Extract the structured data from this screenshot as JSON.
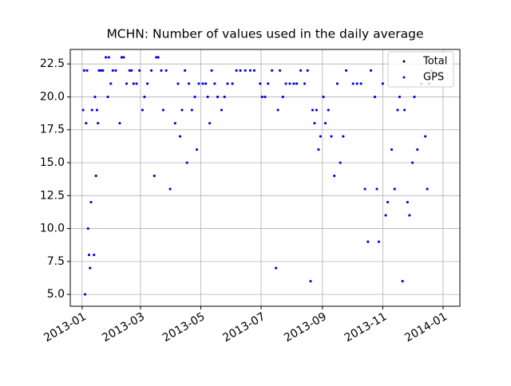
{
  "chart_data": {
    "type": "scatter",
    "title": "MCHN: Number of values used in the daily average",
    "x": [
      "2013-01-02",
      "2013-01-03",
      "2013-01-04",
      "2013-01-05",
      "2013-01-06",
      "2013-01-07",
      "2013-01-08",
      "2013-01-09",
      "2013-01-10",
      "2013-01-11",
      "2013-01-13",
      "2013-01-14",
      "2013-01-15",
      "2013-01-16",
      "2013-01-17",
      "2013-01-18",
      "2013-01-20",
      "2013-01-22",
      "2013-01-25",
      "2013-01-27",
      "2013-01-28",
      "2013-01-30",
      "2013-02-01",
      "2013-02-04",
      "2013-02-08",
      "2013-02-10",
      "2013-02-12",
      "2013-02-15",
      "2013-02-18",
      "2013-02-20",
      "2013-02-22",
      "2013-02-25",
      "2013-02-28",
      "2013-03-03",
      "2013-03-05",
      "2013-03-08",
      "2013-03-12",
      "2013-03-15",
      "2013-03-17",
      "2013-03-19",
      "2013-03-22",
      "2013-03-24",
      "2013-03-27",
      "2013-03-31",
      "2013-04-05",
      "2013-04-08",
      "2013-04-10",
      "2013-04-12",
      "2013-04-15",
      "2013-04-17",
      "2013-04-19",
      "2013-04-22",
      "2013-04-25",
      "2013-04-27",
      "2013-04-29",
      "2013-05-03",
      "2013-05-06",
      "2013-05-08",
      "2013-05-10",
      "2013-05-12",
      "2013-05-15",
      "2013-05-18",
      "2013-05-22",
      "2013-05-25",
      "2013-05-28",
      "2013-06-02",
      "2013-06-06",
      "2013-06-10",
      "2013-06-15",
      "2013-06-20",
      "2013-06-24",
      "2013-06-30",
      "2013-07-02",
      "2013-07-05",
      "2013-07-08",
      "2013-07-12",
      "2013-07-16",
      "2013-07-18",
      "2013-07-20",
      "2013-07-23",
      "2013-07-26",
      "2013-07-30",
      "2013-08-03",
      "2013-08-06",
      "2013-08-10",
      "2013-08-14",
      "2013-08-17",
      "2013-08-20",
      "2013-08-22",
      "2013-08-24",
      "2013-08-26",
      "2013-08-28",
      "2013-08-30",
      "2013-09-02",
      "2013-09-04",
      "2013-09-07",
      "2013-09-10",
      "2013-09-13",
      "2013-09-16",
      "2013-09-19",
      "2013-09-22",
      "2013-09-25",
      "2013-10-02",
      "2013-10-06",
      "2013-10-10",
      "2013-10-14",
      "2013-10-17",
      "2013-10-20",
      "2013-10-24",
      "2013-10-26",
      "2013-10-28",
      "2013-11-01",
      "2013-11-04",
      "2013-11-06",
      "2013-11-10",
      "2013-11-13",
      "2013-11-16",
      "2013-11-18",
      "2013-11-21",
      "2013-11-23",
      "2013-11-26",
      "2013-11-28",
      "2013-12-01",
      "2013-12-03",
      "2013-12-06",
      "2013-12-10",
      "2013-12-14",
      "2013-12-16",
      "2013-12-18",
      "2013-12-20"
    ],
    "series": [
      {
        "name": "Total",
        "color": "#000000",
        "values": [
          19,
          22,
          5,
          18,
          22,
          10,
          8,
          7,
          12,
          19,
          8,
          20,
          14,
          19,
          18,
          22,
          22,
          22,
          23,
          20,
          23,
          21,
          22,
          22,
          18,
          23,
          23,
          21,
          22,
          22,
          21,
          21,
          22,
          19,
          20,
          21,
          22,
          14,
          23,
          23,
          22,
          19,
          22,
          13,
          18,
          21,
          17,
          19,
          22,
          15,
          21,
          19,
          20,
          16,
          21,
          21,
          21,
          20,
          18,
          22,
          21,
          20,
          19,
          20,
          21,
          21,
          22,
          22,
          22,
          22,
          22,
          21,
          20,
          20,
          21,
          22,
          7,
          19,
          22,
          20,
          21,
          21,
          21,
          21,
          22,
          21,
          22,
          6,
          19,
          18,
          19,
          16,
          17,
          20,
          18,
          19,
          17,
          14,
          21,
          15,
          17,
          22,
          21,
          21,
          21,
          13,
          9,
          22,
          20,
          13,
          9,
          21,
          11,
          12,
          16,
          13,
          19,
          20,
          6,
          19,
          12,
          11,
          15,
          20,
          16,
          21,
          17,
          13,
          21,
          22
        ]
      },
      {
        "name": "GPS",
        "color": "#0000ff",
        "values": [
          19,
          22,
          5,
          18,
          22,
          10,
          8,
          7,
          12,
          19,
          8,
          20,
          14,
          19,
          18,
          22,
          22,
          22,
          23,
          20,
          23,
          21,
          22,
          22,
          18,
          23,
          23,
          21,
          22,
          22,
          21,
          21,
          22,
          19,
          20,
          21,
          22,
          14,
          23,
          23,
          22,
          19,
          22,
          13,
          18,
          21,
          17,
          19,
          22,
          15,
          21,
          19,
          20,
          16,
          21,
          21,
          21,
          20,
          18,
          22,
          21,
          20,
          19,
          20,
          21,
          21,
          22,
          22,
          22,
          22,
          22,
          21,
          20,
          20,
          21,
          22,
          7,
          19,
          22,
          20,
          21,
          21,
          21,
          21,
          22,
          21,
          22,
          6,
          19,
          18,
          19,
          16,
          17,
          20,
          18,
          19,
          17,
          14,
          21,
          15,
          17,
          22,
          21,
          21,
          21,
          13,
          9,
          22,
          20,
          13,
          9,
          21,
          11,
          12,
          16,
          13,
          19,
          20,
          6,
          19,
          12,
          11,
          15,
          20,
          16,
          21,
          17,
          13,
          21,
          22
        ]
      }
    ],
    "xlim": [
      "2012-12-20",
      "2014-01-18"
    ],
    "xticks": [
      "2013-01",
      "2013-03",
      "2013-05",
      "2013-07",
      "2013-09",
      "2013-11",
      "2014-01"
    ],
    "ylim": [
      4.1,
      23.6
    ],
    "yticks": [
      {
        "value": 5,
        "label": "5.0"
      },
      7.5,
      {
        "value": 10,
        "label": "10.0"
      },
      12.5,
      {
        "value": 15,
        "label": "15.0"
      },
      17.5,
      {
        "value": 20,
        "label": "20.0"
      },
      22.5
    ],
    "grid": true,
    "legend": "upper right"
  }
}
